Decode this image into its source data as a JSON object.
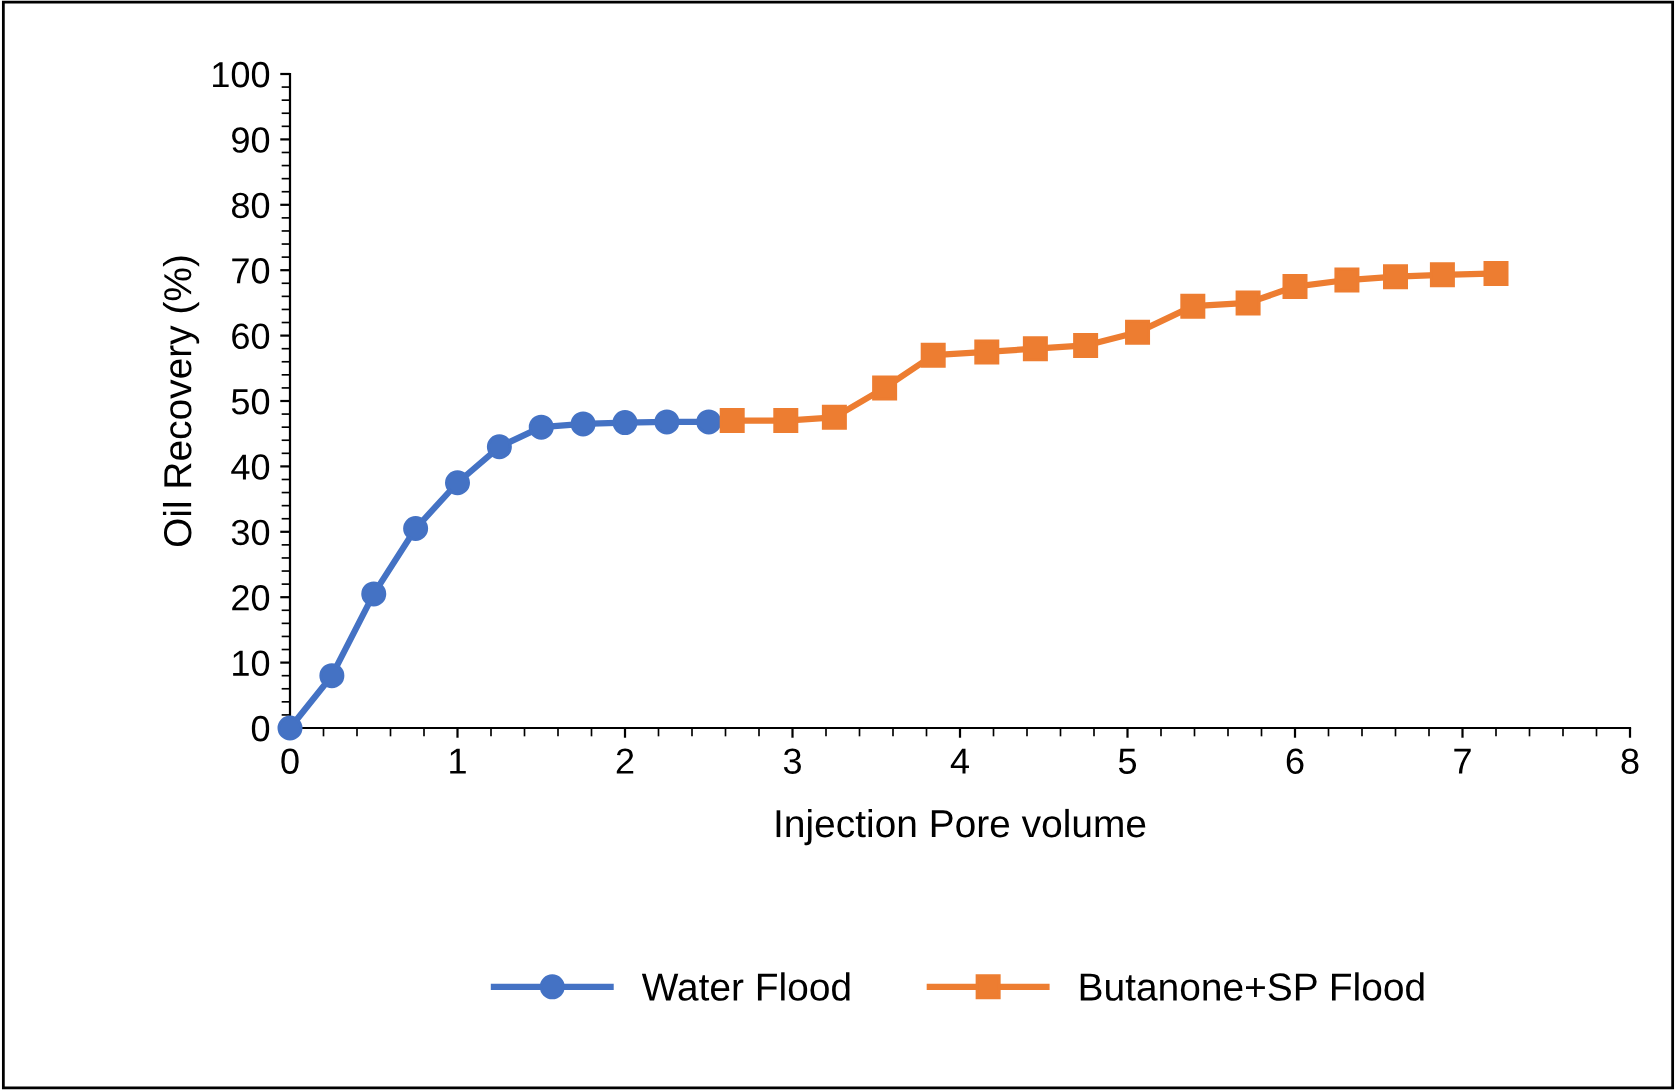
{
  "chart_data": {
    "type": "line",
    "xlabel": "Injection Pore volume",
    "ylabel": "Oil Recovery (%)",
    "xlim": [
      0,
      8
    ],
    "xticks": [
      0,
      1,
      2,
      3,
      4,
      5,
      6,
      7,
      8
    ],
    "ylim": [
      0,
      100
    ],
    "yticks": [
      0,
      10,
      20,
      30,
      40,
      50,
      60,
      70,
      80,
      90,
      100
    ],
    "grid": false,
    "legend": "bottom",
    "series": [
      {
        "name": "Water Flood",
        "color": "#4472c4",
        "marker": "circle",
        "x": [
          0,
          0.25,
          0.5,
          0.75,
          1,
          1.25,
          1.5,
          1.75,
          2,
          2.25,
          2.5
        ],
        "values": [
          0,
          8,
          20.5,
          30.5,
          37.5,
          43,
          46,
          46.5,
          46.7,
          46.8,
          46.8
        ]
      },
      {
        "name": "Butanone+SP Flood",
        "color": "#ed7d31",
        "marker": "square",
        "x": [
          2.64,
          2.96,
          3.25,
          3.55,
          3.84,
          4.16,
          4.45,
          4.75,
          5.06,
          5.39,
          5.72,
          6.0,
          6.31,
          6.6,
          6.88,
          7.2
        ],
        "values": [
          47,
          47,
          47.5,
          52,
          57,
          57.5,
          58,
          58.5,
          60.5,
          64.5,
          65,
          67.5,
          68.5,
          69,
          69.3,
          69.5
        ]
      }
    ]
  }
}
